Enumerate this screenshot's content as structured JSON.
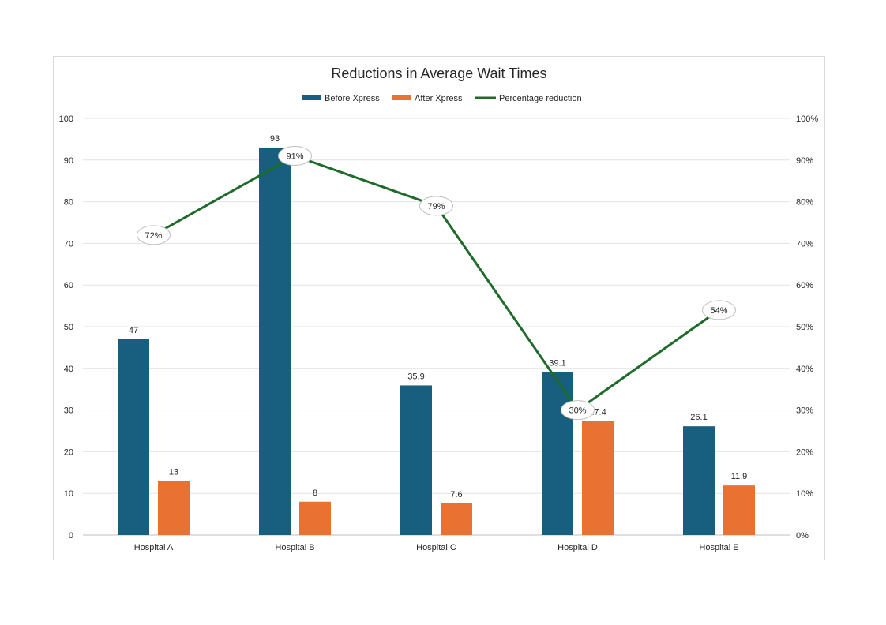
{
  "chart_data": {
    "type": "bar+line",
    "title": "Reductions in Average Wait Times",
    "categories": [
      "Hospital A",
      "Hospital B",
      "Hospital C",
      "Hospital D",
      "Hospital E"
    ],
    "series": [
      {
        "name": "Before Xpress",
        "type": "bar",
        "axis": "left",
        "color": "#175e7f",
        "values": [
          47,
          93,
          35.9,
          39.1,
          26.1
        ],
        "labels": [
          "47",
          "93",
          "35.9",
          "39.1",
          "26.1"
        ]
      },
      {
        "name": "After Xpress",
        "type": "bar",
        "axis": "left",
        "color": "#e97132",
        "values": [
          13,
          8,
          7.6,
          27.4,
          11.9
        ],
        "labels": [
          "13",
          "8",
          "7.6",
          "27.4",
          "11.9"
        ]
      },
      {
        "name": "Percentage reduction",
        "type": "line",
        "axis": "right",
        "color": "#1e6b2a",
        "values": [
          72,
          91,
          79,
          30,
          54
        ],
        "labels": [
          "72%",
          "91%",
          "79%",
          "30%",
          "54%"
        ]
      }
    ],
    "y_left": {
      "range": [
        0,
        100
      ],
      "ticks": [
        "0",
        "10",
        "20",
        "30",
        "40",
        "50",
        "60",
        "70",
        "80",
        "90",
        "100"
      ]
    },
    "y_right": {
      "range": [
        0,
        100
      ],
      "ticks": [
        "0%",
        "10%",
        "20%",
        "30%",
        "40%",
        "50%",
        "60%",
        "70%",
        "80%",
        "90%",
        "100%"
      ]
    },
    "grid": true,
    "legend": "top"
  }
}
